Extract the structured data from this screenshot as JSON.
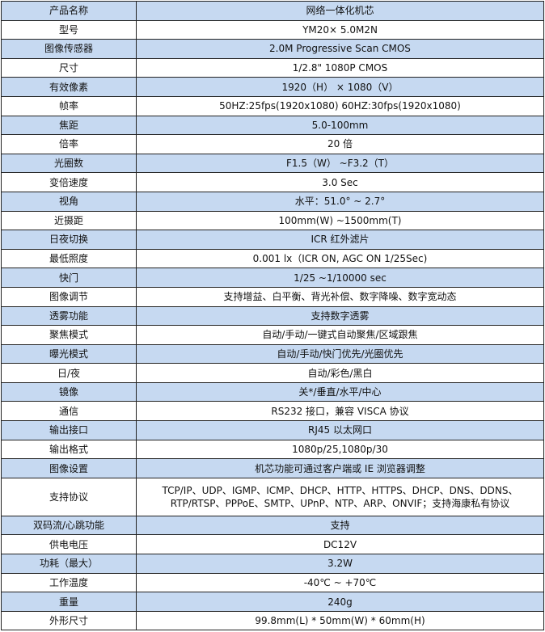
{
  "colors": {
    "alternate_row": "#c6d9f1",
    "border": "#222222"
  },
  "specs": [
    {
      "label": "产品名称",
      "value": "网络一体化机芯"
    },
    {
      "label": "型号",
      "value": "YM20× 5.0M2N"
    },
    {
      "label": "图像传感器",
      "value": "2.0M  Progressive Scan CMOS"
    },
    {
      "label": "尺寸",
      "value": "1/2.8\"  1080P CMOS"
    },
    {
      "label": "有效像素",
      "value": "1920（H） × 1080（V）"
    },
    {
      "label": "帧率",
      "value": "50HZ:25fps(1920x1080)   60HZ:30fps(1920x1080)"
    },
    {
      "label": "焦距",
      "value": "5.0-100mm"
    },
    {
      "label": "倍率",
      "value": "20 倍"
    },
    {
      "label": "光圈数",
      "value": "F1.5（W）  ~F3.2（T）"
    },
    {
      "label": "变倍速度",
      "value": "3.0 Sec"
    },
    {
      "label": "视角",
      "value": "水平：51.0° ~ 2.7°"
    },
    {
      "label": "近摄距",
      "value": "100mm(W) ~1500mm(T)"
    },
    {
      "label": "日夜切换",
      "value": "ICR  红外滤片"
    },
    {
      "label": "最低照度",
      "value": "0.001 lx（ICR ON, AGC ON 1/25Sec)"
    },
    {
      "label": "快门",
      "value": "1/25 ~1/10000 sec"
    },
    {
      "label": "图像调节",
      "value": "支持增益、白平衡、背光补偿、数字降噪、数字宽动态"
    },
    {
      "label": "透雾功能",
      "value": "支持数字透雾"
    },
    {
      "label": "聚焦模式",
      "value": "自动/手动/一键式自动聚焦/区域跟焦"
    },
    {
      "label": "曝光模式",
      "value": "自动/手动/快门优先/光圈优先"
    },
    {
      "label": "日/夜",
      "value": "自动/彩色/黑白"
    },
    {
      "label": "镜像",
      "value": "关*/垂直/水平/中心"
    },
    {
      "label": "通信",
      "value": "RS232 接口，兼容 VISCA 协议"
    },
    {
      "label": "输出接口",
      "value": "RJ45 以太网口"
    },
    {
      "label": "输出格式",
      "value": "1080p/25,1080p/30"
    },
    {
      "label": "图像设置",
      "value": "机芯功能可通过客户端或 IE 浏览器调整"
    },
    {
      "label": "支持协议",
      "value": "TCP/IP、UDP、IGMP、ICMP、DHCP、HTTP、HTTPS、DHCP、DNS、DDNS、RTP/RTSP、PPPoE、SMTP、UPnP、NTP、ARP、ONVIF；支持海康私有协议"
    },
    {
      "label": "双码流/心跳功能",
      "value": "支持"
    },
    {
      "label": "供电电压",
      "value": "DC12V"
    },
    {
      "label": "功耗（最大）",
      "value": "3.2W"
    },
    {
      "label": "工作温度",
      "value": "-40℃  ~   +70℃"
    },
    {
      "label": "重量",
      "value": "240g"
    },
    {
      "label": "外形尺寸",
      "value": "99.8mm(L) * 50mm(W) * 60mm(H)"
    }
  ]
}
